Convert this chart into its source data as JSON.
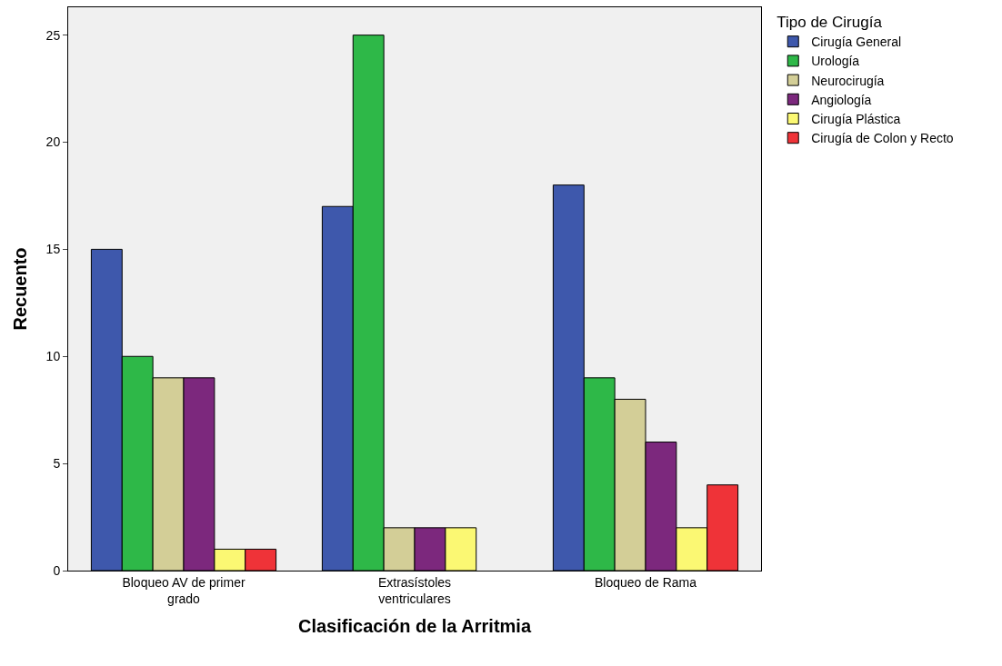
{
  "chart_data": {
    "type": "bar",
    "xlabel": "Clasificación de la Arritmia",
    "ylabel": "Recuento",
    "legend_title": "Tipo de Cirugía",
    "legend": "top right",
    "grid": false,
    "categories": [
      "Bloqueo AV de primer grado",
      "Extrasístoles ventriculares",
      "Bloqueo de Rama"
    ],
    "ylim": [
      0,
      26.3
    ],
    "yticks": [
      0,
      5,
      10,
      15,
      20,
      25
    ],
    "series": [
      {
        "name": "Cirugía General",
        "color": "#3e58ac",
        "values": [
          15,
          17,
          18
        ]
      },
      {
        "name": "Urología",
        "color": "#2eb848",
        "values": [
          10,
          25,
          9
        ]
      },
      {
        "name": "Neurocirugía",
        "color": "#d3ce97",
        "values": [
          9,
          2,
          8
        ]
      },
      {
        "name": "Angiología",
        "color": "#7c287d",
        "values": [
          9,
          2,
          6
        ]
      },
      {
        "name": "Cirugía Plástica",
        "color": "#fbf873",
        "values": [
          1,
          2,
          2
        ]
      },
      {
        "name": "Cirugía de Colon y Recto",
        "color": "#ef3338",
        "values": [
          1,
          null,
          4
        ]
      }
    ]
  }
}
